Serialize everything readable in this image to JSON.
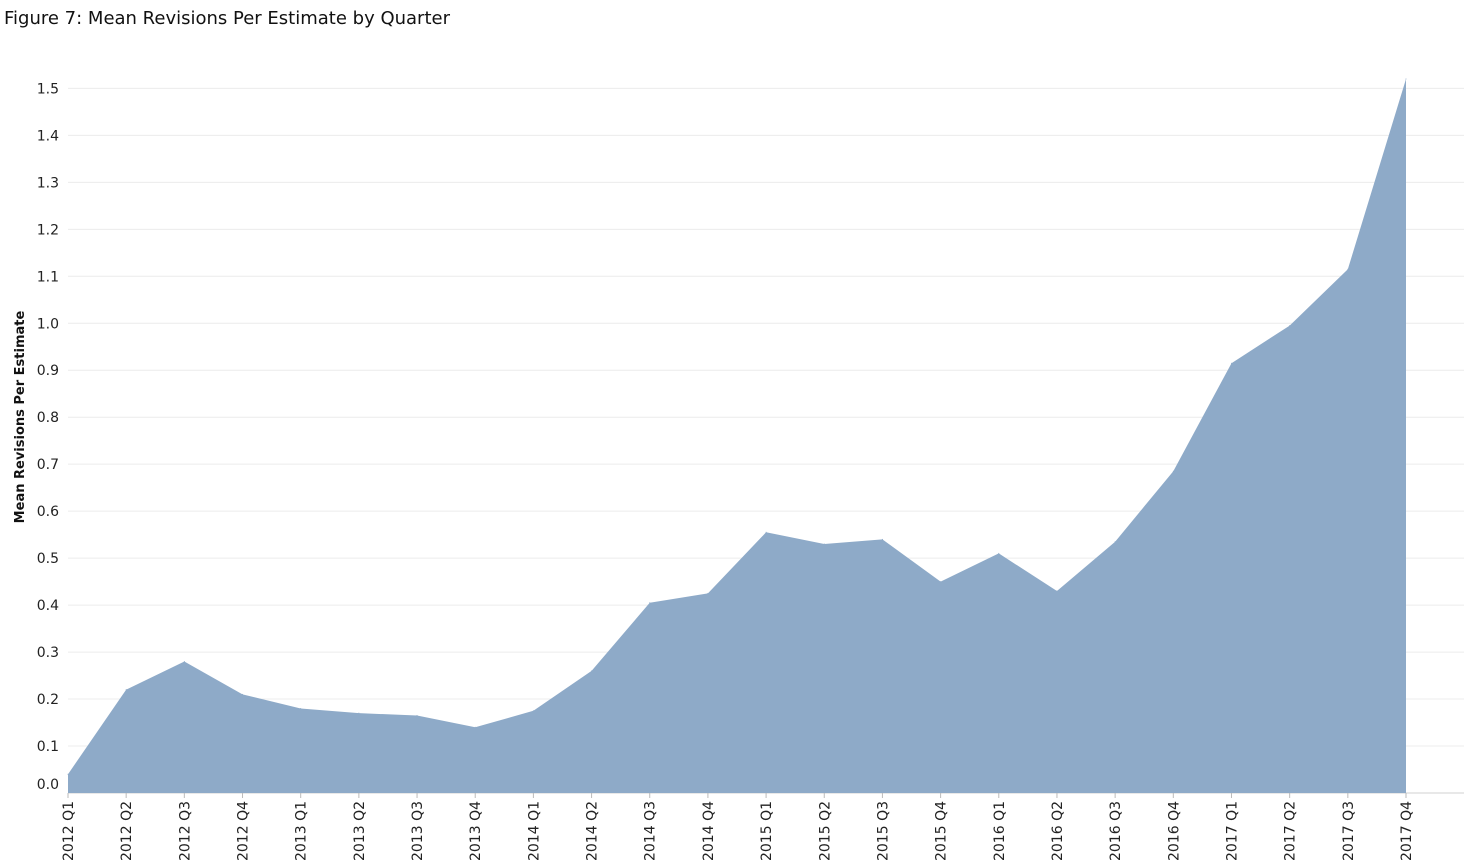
{
  "chart_data": {
    "type": "area",
    "title": "Figure 7: Mean Revisions Per Estimate by Quarter",
    "ylabel": "Mean Revisions Per Estimate",
    "xlabel": "",
    "ylim": [
      0.0,
      1.52
    ],
    "yticks": [
      "0.0",
      "0.1",
      "0.2",
      "0.3",
      "0.4",
      "0.5",
      "0.6",
      "0.7",
      "0.8",
      "0.9",
      "1.0",
      "1.1",
      "1.2",
      "1.3",
      "1.4",
      "1.5"
    ],
    "grid": true,
    "color": "#8eaac8",
    "categories": [
      "2012 Q1",
      "2012 Q2",
      "2012 Q3",
      "2012 Q4",
      "2013 Q1",
      "2013 Q2",
      "2013 Q3",
      "2013 Q4",
      "2014 Q1",
      "2014 Q2",
      "2014 Q3",
      "2014 Q4",
      "2015 Q1",
      "2015 Q2",
      "2015 Q3",
      "2015 Q4",
      "2016 Q1",
      "2016 Q2",
      "2016 Q3",
      "2016 Q4",
      "2017 Q1",
      "2017 Q2",
      "2017 Q3",
      "2017 Q4"
    ],
    "values": [
      0.04,
      0.22,
      0.28,
      0.21,
      0.18,
      0.17,
      0.165,
      0.14,
      0.175,
      0.26,
      0.405,
      0.425,
      0.555,
      0.53,
      0.54,
      0.45,
      0.51,
      0.43,
      0.535,
      0.685,
      0.915,
      0.995,
      1.115,
      1.52
    ]
  }
}
